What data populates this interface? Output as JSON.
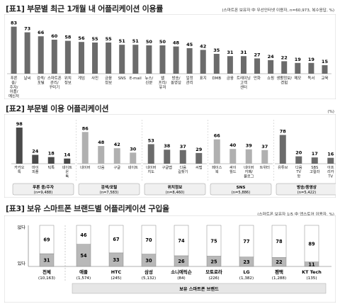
{
  "tables": [
    {
      "title": "[표1] 부문별 최근 1개월 내 어플리케이션 이용률",
      "note": "(스마트폰 보유자 中 무선인터넷 이용자, n=60,973, 복수응답, %)",
      "chart_data": {
        "type": "bar",
        "categories": [
          "푸른 중/ 주자/ 어플/ 메신저",
          "날씨",
          "검색/ 포털",
          "스마트폰 관리/ 꾸미기",
          "위치 정보",
          "게임",
          "사진",
          "금융 정보",
          "SNS",
          "E-mail",
          "뉴스/ 신문",
          "웹 프라/ 유저",
          "방송/ 동영상",
          "일정 관리",
          "표지",
          "DMB",
          "금융",
          "트레이닝 고객 센터",
          "만화",
          "쇼핑",
          "생활정보/ 경험",
          "메모",
          "독서",
          "교육"
        ],
        "values": [
          83,
          73,
          66,
          60,
          58,
          56,
          55,
          55,
          51,
          51,
          50,
          50,
          48,
          45,
          42,
          35,
          31,
          31,
          27,
          24,
          22,
          19,
          19,
          15
        ],
        "ylim": [
          0,
          100
        ],
        "bar_color": "#6b6b6b"
      }
    },
    {
      "title": "[표2] 부문별 이용 어플리케이션",
      "note": "(%)",
      "chart_data": {
        "type": "bar",
        "groups": [
          {
            "name": "푸른 중/주자",
            "n": "(n=9,488)",
            "color": "#4a4a4a",
            "categories": [
              "카카오 톡",
              "마이 피플",
              "틱톡",
              "네이트 온 톡"
            ],
            "values": [
              98,
              24,
              18,
              14
            ]
          },
          {
            "name": "검색/포털",
            "n": "(n=7,583)",
            "color": "#b0b0b0",
            "categories": [
              "네이버",
              "다음",
              "구글",
              "네이트"
            ],
            "values": [
              86,
              48,
              42,
              30
            ]
          },
          {
            "name": "위치정보",
            "n": "(n=8,460)",
            "color": "#6b6b6b",
            "categories": [
              "네이버 지도",
              "구글맵",
              "다음 길찾기",
              "씨맵"
            ],
            "values": [
              53,
              38,
              37,
              29
            ]
          },
          {
            "name": "SNS",
            "n": "(n=5,886)",
            "color": "#b0b0b0",
            "categories": [
              "페이스 북",
              "싸이 월드",
              "네이버 카페/ 블로그",
              "트위터"
            ],
            "values": [
              66,
              40,
              39,
              37
            ]
          },
          {
            "name": "방송/동영상",
            "n": "(n=5,422)",
            "color": "#6b6b6b",
            "categories": [
              "유튜브",
              "다음 TV 팟",
              "SBS 고릴라",
              "아프 리카 TV"
            ],
            "values": [
              78,
              20,
              17,
              16
            ]
          }
        ],
        "ylim": [
          0,
          100
        ]
      }
    },
    {
      "title": "[표3] 보유 스마트폰 브랜드별 어플리케이션 구입율",
      "note": "(스마트폰 보유자 1/5 中 앱스토어 이용자, %)",
      "chart_data": {
        "type": "bar",
        "stacked": true,
        "row_labels": {
          "top": "없다",
          "bottom": "있다"
        },
        "categories": [
          "전체",
          "애플",
          "HTC",
          "삼성",
          "소니에릭슨",
          "모토로라",
          "LG",
          "팬택",
          "KT Tech"
        ],
        "n_labels": [
          "(10,163)",
          "(1,574)",
          "(245)",
          "(5,132)",
          "(84)",
          "(226)",
          "(1,382)",
          "(1,288)",
          "(135)"
        ],
        "series": [
          {
            "name": "있다",
            "values": [
              31,
              54,
              33,
              30,
              26,
              25,
              23,
              22,
              11
            ],
            "color": "#b8b8b8"
          },
          {
            "name": "없다",
            "values": [
              69,
              46,
              67,
              70,
              74,
              75,
              77,
              78,
              89
            ],
            "color": "#ffffff"
          }
        ],
        "group_label": "보유 스마트폰 브랜드",
        "ylim": [
          0,
          100
        ]
      }
    }
  ]
}
